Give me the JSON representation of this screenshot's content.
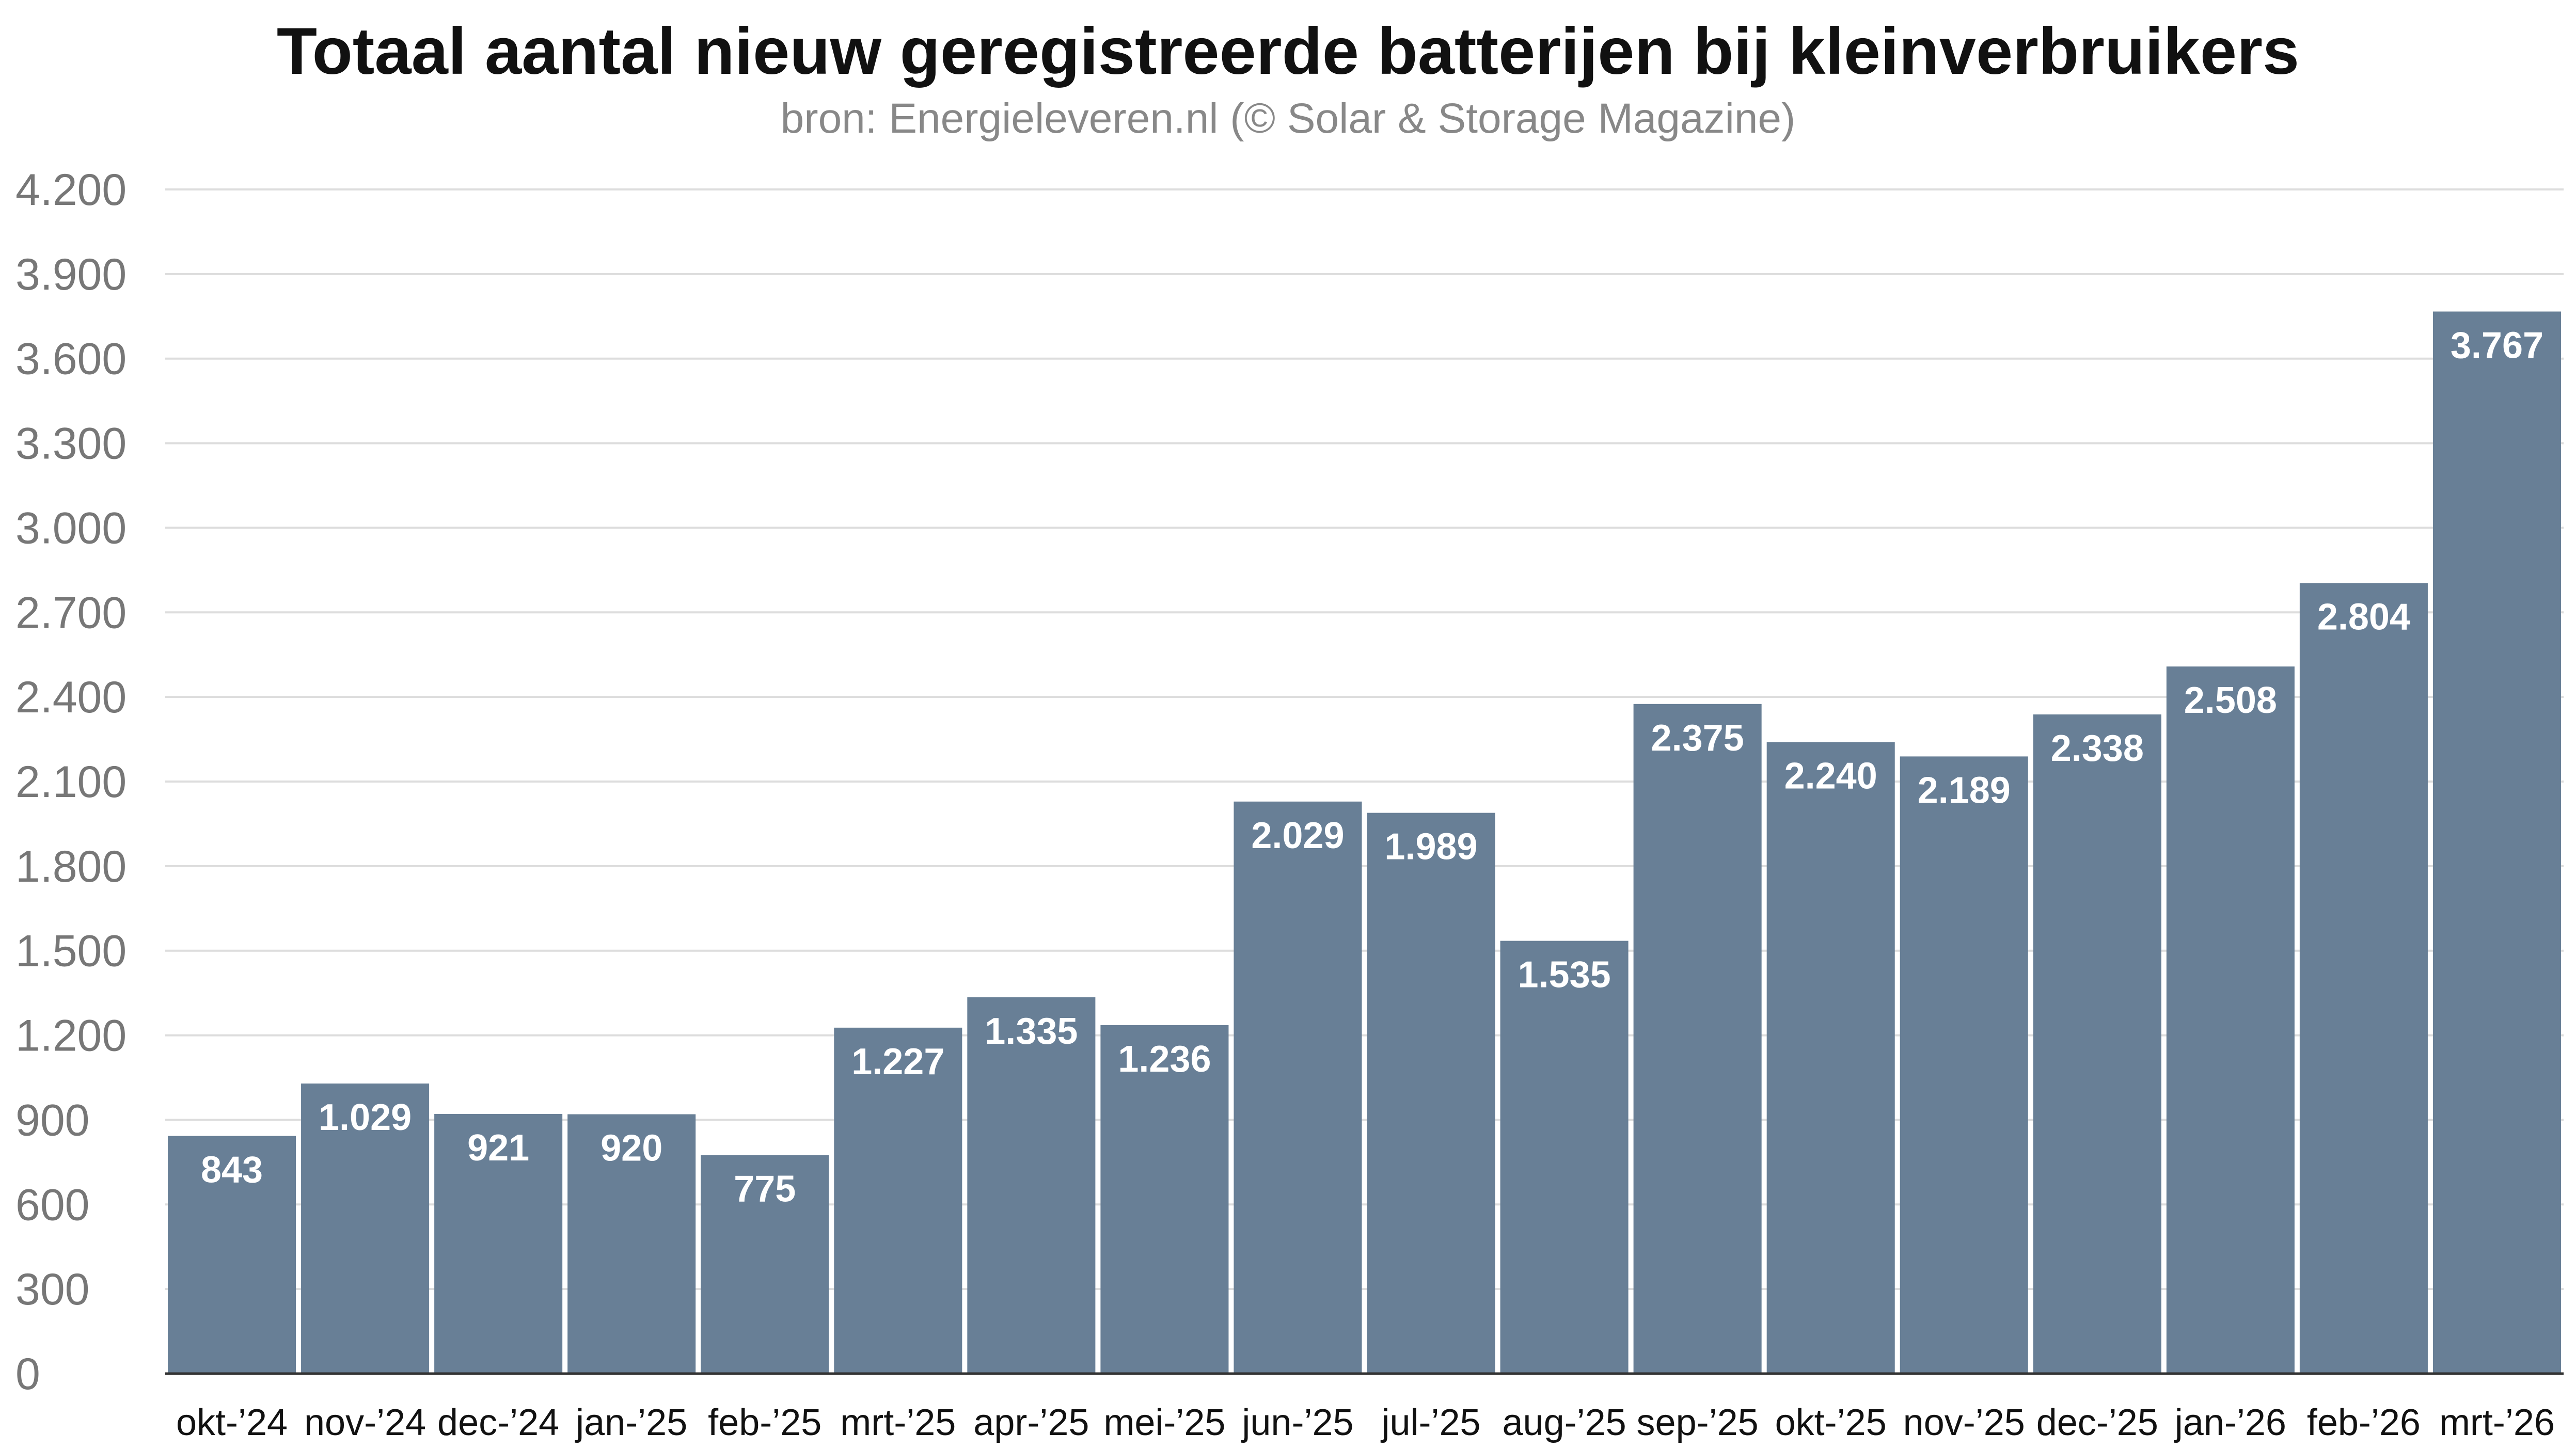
{
  "chart_data": {
    "type": "bar",
    "title": "Totaal aantal nieuw geregistreerde batterijen bij kleinverbruikers",
    "subtitle": "bron: Energieleveren.nl (© Solar & Storage Magazine)",
    "categories": [
      "okt-’24",
      "nov-’24",
      "dec-’24",
      "jan-’25",
      "feb-’25",
      "mrt-’25",
      "apr-’25",
      "mei-’25",
      "jun-’25",
      "jul-’25",
      "aug-’25",
      "sep-’25",
      "okt-’25",
      "nov-’25",
      "dec-’25",
      "jan-’26",
      "feb-’26",
      "mrt-’26"
    ],
    "values": [
      843,
      1029,
      921,
      920,
      775,
      1227,
      1335,
      1236,
      2029,
      1989,
      1535,
      2375,
      2240,
      2189,
      2338,
      2508,
      2804,
      3767
    ],
    "value_labels": [
      "843",
      "1.029",
      "921",
      "920",
      "775",
      "1.227",
      "1.335",
      "1.236",
      "2.029",
      "1.989",
      "1.535",
      "2.375",
      "2.240",
      "2.189",
      "2.338",
      "2.508",
      "2.804",
      "3.767"
    ],
    "yticks": [
      0,
      300,
      600,
      900,
      1200,
      1500,
      1800,
      2100,
      2400,
      2700,
      3000,
      3300,
      3600,
      3900,
      4200
    ],
    "ytick_labels": [
      "0",
      "300",
      "600",
      "900",
      "1.200",
      "1.500",
      "1.800",
      "2.100",
      "2.400",
      "2.700",
      "3.000",
      "3.300",
      "3.600",
      "3.900",
      "4.200"
    ],
    "ylim": [
      0,
      4200
    ],
    "xlabel": "",
    "ylabel": "",
    "grid": true,
    "legend": "none",
    "colors": {
      "bar": "#687f96",
      "grid": "#dddddd",
      "axis": "#333333",
      "tick_text": "#777777",
      "category_text": "#111111",
      "value_label": "#ffffff"
    }
  }
}
